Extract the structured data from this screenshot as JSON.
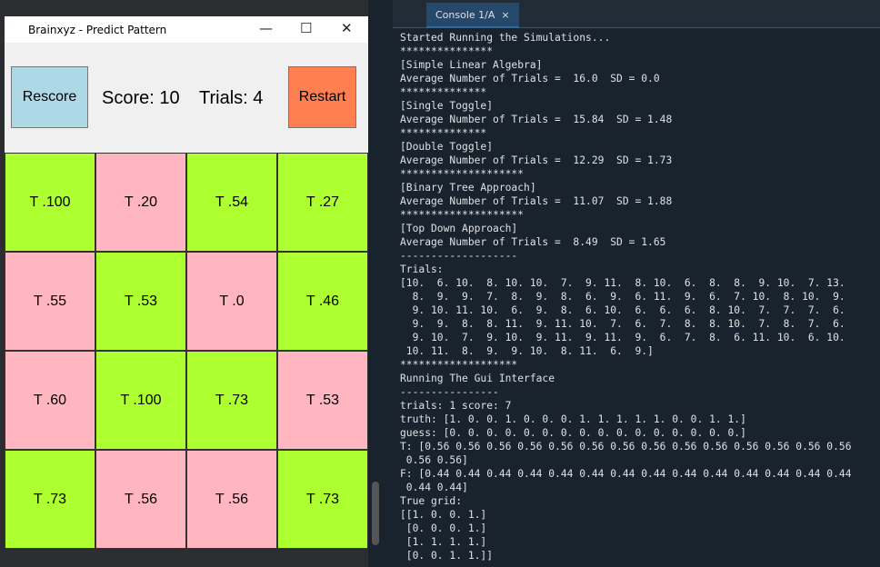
{
  "window": {
    "title": "Brainxyz - Predict Pattern",
    "toolbar": {
      "rescore": "Rescore",
      "score": "Score: 10",
      "trials": "Trials: 4",
      "restart": "Restart"
    },
    "grid": [
      [
        {
          "label": "T .100",
          "color": "#adff2f"
        },
        {
          "label": "T .20",
          "color": "#ffb6c1"
        },
        {
          "label": "T .54",
          "color": "#adff2f"
        },
        {
          "label": "T .27",
          "color": "#adff2f"
        }
      ],
      [
        {
          "label": "T .55",
          "color": "#ffb6c1"
        },
        {
          "label": "T .53",
          "color": "#adff2f"
        },
        {
          "label": "T .0",
          "color": "#ffb6c1"
        },
        {
          "label": "T .46",
          "color": "#adff2f"
        }
      ],
      [
        {
          "label": "T .60",
          "color": "#ffb6c1"
        },
        {
          "label": "T .100",
          "color": "#adff2f"
        },
        {
          "label": "T .73",
          "color": "#adff2f"
        },
        {
          "label": "T .53",
          "color": "#ffb6c1"
        }
      ],
      [
        {
          "label": "T .73",
          "color": "#adff2f"
        },
        {
          "label": "T .56",
          "color": "#ffb6c1"
        },
        {
          "label": "T .56",
          "color": "#ffb6c1"
        },
        {
          "label": "T .73",
          "color": "#adff2f"
        }
      ]
    ]
  },
  "console": {
    "tab": "Console 1/A",
    "lines": [
      "Started Running the Simulations...",
      "***************",
      "[Simple Linear Algebra]",
      "Average Number of Trials =  16.0  SD = 0.0",
      "**************",
      "[Single Toggle]",
      "Average Number of Trials =  15.84  SD = 1.48",
      "**************",
      "[Double Toggle]",
      "Average Number of Trials =  12.29  SD = 1.73",
      "********************",
      "[Binary Tree Approach]",
      "Average Number of Trials =  11.07  SD = 1.88",
      "********************",
      "[Top Down Approach]",
      "Average Number of Trials =  8.49  SD = 1.65",
      "-------------------",
      "Trials:",
      "[10.  6. 10.  8. 10. 10.  7.  9. 11.  8. 10.  6.  8.  8.  9. 10.  7. 13.",
      "  8.  9.  9.  7.  8.  9.  8.  6.  9.  6. 11.  9.  6.  7. 10.  8. 10.  9.",
      "  9. 10. 11. 10.  6.  9.  8.  6. 10.  6.  6.  6.  8. 10.  7.  7.  7.  6.",
      "  9.  9.  8.  8. 11.  9. 11. 10.  7.  6.  7.  8.  8. 10.  7.  8.  7.  6.",
      "  9. 10.  7.  9. 10.  9. 11.  9. 11.  9.  6.  7.  8.  6. 11. 10.  6. 10.",
      " 10. 11.  8.  9.  9. 10.  8. 11.  6.  9.]",
      "*******************",
      "Running The Gui Interface",
      "----------------",
      "trials: 1 score: 7",
      "truth: [1. 0. 0. 1. 0. 0. 0. 1. 1. 1. 1. 1. 0. 0. 1. 1.]",
      "guess: [0. 0. 0. 0. 0. 0. 0. 0. 0. 0. 0. 0. 0. 0. 0. 0.]",
      "T: [0.56 0.56 0.56 0.56 0.56 0.56 0.56 0.56 0.56 0.56 0.56 0.56 0.56 0.56",
      " 0.56 0.56]",
      "F: [0.44 0.44 0.44 0.44 0.44 0.44 0.44 0.44 0.44 0.44 0.44 0.44 0.44 0.44",
      " 0.44 0.44]",
      "True grid:",
      "[[1. 0. 0. 1.]",
      " [0. 0. 0. 1.]",
      " [1. 1. 1. 1.]",
      " [0. 0. 1. 1.]]"
    ]
  }
}
